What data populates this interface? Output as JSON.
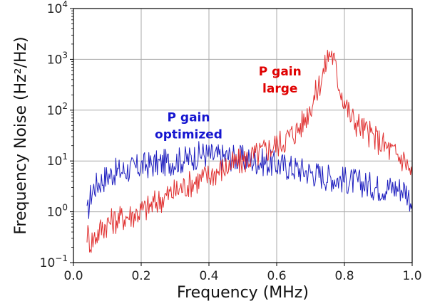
{
  "chart_data": {
    "type": "line",
    "xlabel": "Frequency (MHz)",
    "ylabel": "Frequency Noise (Hz²/Hz)",
    "xlim": [
      0.0,
      1.0
    ],
    "ylim": [
      0.1,
      10000
    ],
    "yscale": "log",
    "grid": true,
    "x_ticks": [
      "0.0",
      "0.2",
      "0.4",
      "0.6",
      "0.8",
      "1.0"
    ],
    "y_ticks": [
      {
        "base": "10",
        "exp": "4"
      },
      {
        "base": "10",
        "exp": "3"
      },
      {
        "base": "10",
        "exp": "2"
      },
      {
        "base": "10",
        "exp": "1"
      },
      {
        "base": "10",
        "exp": "0"
      },
      {
        "base": "10",
        "exp": "−1"
      }
    ],
    "series": [
      {
        "name": "",
        "color": "#1f1fbf",
        "x": [
          0.04,
          0.05,
          0.06,
          0.08,
          0.1,
          0.12,
          0.15,
          0.18,
          0.2,
          0.23,
          0.26,
          0.3,
          0.34,
          0.38,
          0.42,
          0.46,
          0.5,
          0.54,
          0.58,
          0.62,
          0.66,
          0.7,
          0.74,
          0.78,
          0.82,
          0.86,
          0.9,
          0.94,
          0.98,
          1.0
        ],
        "y": [
          0.8,
          2.0,
          3.0,
          4.0,
          5.0,
          6.0,
          6.5,
          7.0,
          8.0,
          8.5,
          9.0,
          10.0,
          11.0,
          14.0,
          12.0,
          12.0,
          11.0,
          10.0,
          9.0,
          8.0,
          7.0,
          6.0,
          5.0,
          4.5,
          4.0,
          3.5,
          3.0,
          3.0,
          2.8,
          1.5
        ]
      },
      {
        "name": "",
        "color": "#e03030",
        "x": [
          0.04,
          0.05,
          0.06,
          0.08,
          0.1,
          0.14,
          0.18,
          0.22,
          0.26,
          0.3,
          0.34,
          0.38,
          0.42,
          0.46,
          0.5,
          0.54,
          0.58,
          0.62,
          0.66,
          0.68,
          0.7,
          0.72,
          0.74,
          0.75,
          0.76,
          0.77,
          0.78,
          0.8,
          0.82,
          0.86,
          0.9,
          0.94,
          0.98,
          1.0
        ],
        "y": [
          0.4,
          0.25,
          0.3,
          0.45,
          0.6,
          0.75,
          0.9,
          1.2,
          1.8,
          2.5,
          3.5,
          4.5,
          6.0,
          8.0,
          10.0,
          13.0,
          18.0,
          25.0,
          40.0,
          60.0,
          120.0,
          250.0,
          600.0,
          1100.0,
          1400.0,
          900.0,
          400.0,
          150.0,
          70.0,
          40.0,
          25.0,
          15.0,
          10.0,
          5.0
        ]
      }
    ],
    "annotations": [
      {
        "line1": "P gain",
        "line2": "optimized",
        "color": "#1515d0",
        "x": 0.34,
        "y": 60
      },
      {
        "line1": "P gain",
        "line2": "large",
        "color": "#e00000",
        "x": 0.61,
        "y": 480
      }
    ]
  }
}
